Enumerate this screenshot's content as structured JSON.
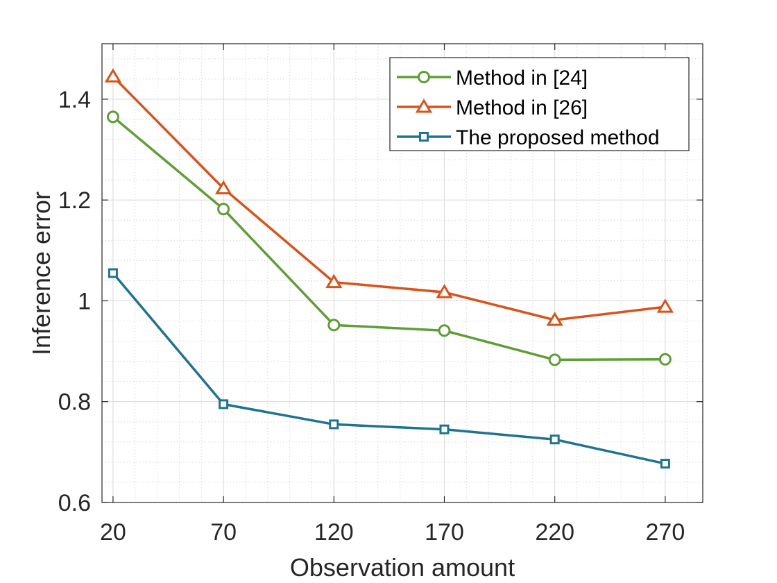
{
  "chart_data": {
    "type": "line",
    "title": "",
    "xlabel": "Observation amount",
    "ylabel": "Inference error",
    "x": [
      20,
      70,
      120,
      170,
      220,
      270
    ],
    "xticks": [
      "20",
      "70",
      "120",
      "170",
      "220",
      "270"
    ],
    "xlim": [
      15,
      287
    ],
    "ylim": [
      0.6,
      1.51
    ],
    "yticks": [
      0.6,
      0.8,
      1.0,
      1.2,
      1.4
    ],
    "ytick_labels": [
      "0.6",
      "0.8",
      "1",
      "1.2",
      "1.4"
    ],
    "grid": true,
    "minor_grid": true,
    "legend_position": "top-right",
    "series": [
      {
        "name": "Method in [24]",
        "marker": "circle",
        "color": "#5f9e36",
        "values": [
          1.365,
          1.182,
          0.952,
          0.941,
          0.883,
          0.884
        ]
      },
      {
        "name": "Method in [26]",
        "marker": "triangle",
        "color": "#d95319",
        "values": [
          1.445,
          1.223,
          1.037,
          1.017,
          0.962,
          0.988
        ]
      },
      {
        "name": "The proposed method",
        "marker": "square",
        "color": "#1e7490",
        "values": [
          1.055,
          0.795,
          0.755,
          0.745,
          0.725,
          0.677
        ]
      }
    ]
  }
}
